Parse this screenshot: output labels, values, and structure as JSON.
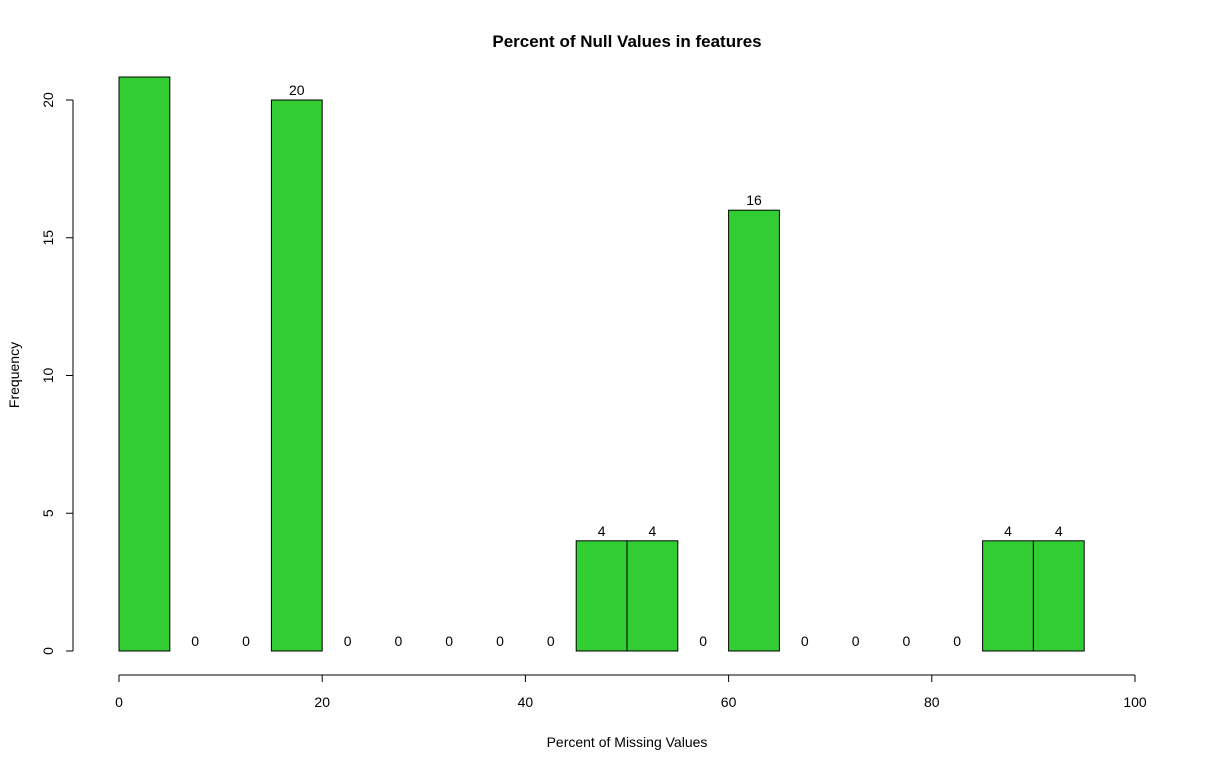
{
  "chart_data": {
    "type": "bar",
    "subtype": "histogram",
    "title": "Percent of Null Values in features",
    "xlabel": "Percent of Missing Values",
    "ylabel": "Frequency",
    "bin_width": 5,
    "bins": [
      {
        "start": 0,
        "end": 5,
        "value": 21,
        "label": ""
      },
      {
        "start": 5,
        "end": 10,
        "value": 0,
        "label": "0"
      },
      {
        "start": 10,
        "end": 15,
        "value": 0,
        "label": "0"
      },
      {
        "start": 15,
        "end": 20,
        "value": 20,
        "label": "20"
      },
      {
        "start": 20,
        "end": 25,
        "value": 0,
        "label": "0"
      },
      {
        "start": 25,
        "end": 30,
        "value": 0,
        "label": "0"
      },
      {
        "start": 30,
        "end": 35,
        "value": 0,
        "label": "0"
      },
      {
        "start": 35,
        "end": 40,
        "value": 0,
        "label": "0"
      },
      {
        "start": 40,
        "end": 45,
        "value": 0,
        "label": "0"
      },
      {
        "start": 45,
        "end": 50,
        "value": 4,
        "label": "4"
      },
      {
        "start": 50,
        "end": 55,
        "value": 4,
        "label": "4"
      },
      {
        "start": 55,
        "end": 60,
        "value": 0,
        "label": "0"
      },
      {
        "start": 60,
        "end": 65,
        "value": 16,
        "label": "16"
      },
      {
        "start": 65,
        "end": 70,
        "value": 0,
        "label": "0"
      },
      {
        "start": 70,
        "end": 75,
        "value": 0,
        "label": "0"
      },
      {
        "start": 75,
        "end": 80,
        "value": 0,
        "label": "0"
      },
      {
        "start": 80,
        "end": 85,
        "value": 0,
        "label": "0"
      },
      {
        "start": 85,
        "end": 90,
        "value": 4,
        "label": "4"
      },
      {
        "start": 90,
        "end": 95,
        "value": 4,
        "label": "4"
      }
    ],
    "xlim": [
      0,
      100
    ],
    "ylim": [
      0,
      20
    ],
    "x_ticks": [
      0,
      20,
      40,
      60,
      80,
      100
    ],
    "y_ticks": [
      0,
      5,
      10,
      15,
      20
    ],
    "bar_color": "#32CD32",
    "bar_border_color": "#000000",
    "grid": false,
    "legend": "none"
  }
}
